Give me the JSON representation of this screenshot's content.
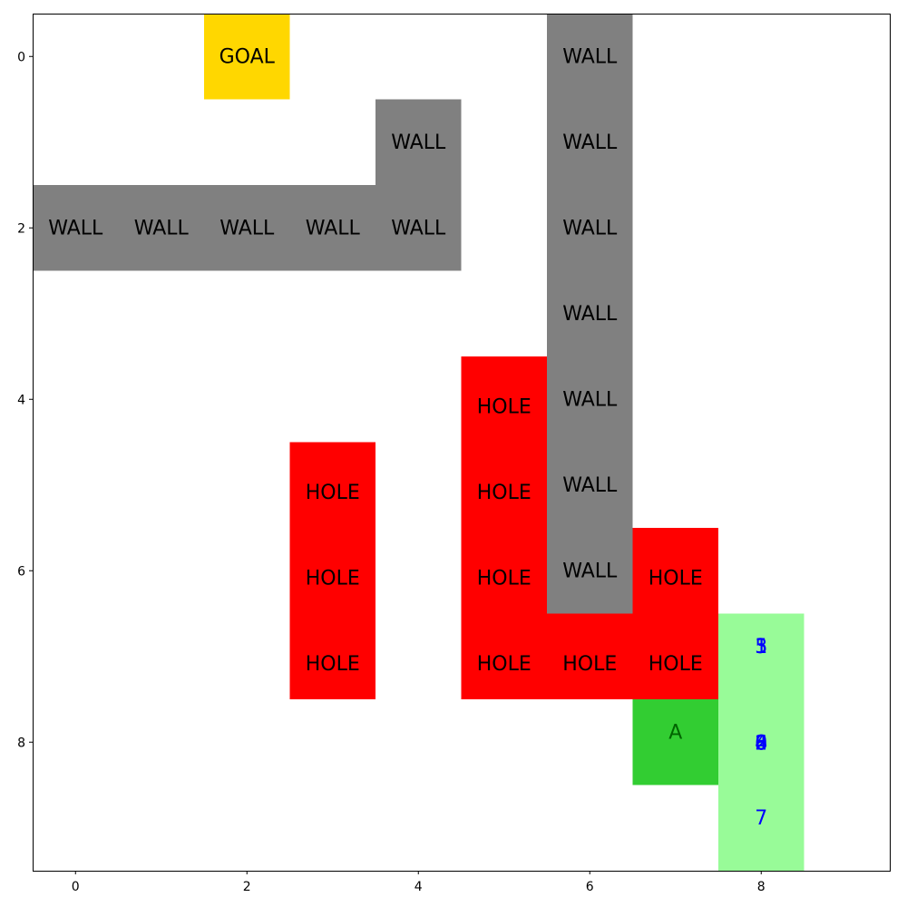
{
  "grid": {
    "rows": 10,
    "cols": 10,
    "x_ticks": [
      "0",
      "2",
      "4",
      "6",
      "8"
    ],
    "y_ticks": [
      "0",
      "2",
      "4",
      "6",
      "8"
    ],
    "x_tick_values": [
      0,
      2,
      4,
      6,
      8
    ],
    "y_tick_values": [
      0,
      2,
      4,
      6,
      8
    ]
  },
  "colors": {
    "wall": "#808080",
    "hole": "#ff0000",
    "goal": "#ffd700",
    "agent": "#32cd32",
    "visited": "#98fb98",
    "visit_text": "#0000ff",
    "agent_text": "#006400",
    "cell_text": "#000000"
  },
  "labels": {
    "wall": "WALL",
    "hole": "HOLE",
    "goal": "GOAL",
    "agent": "A"
  },
  "cells": [
    {
      "type": "goal",
      "row": 0,
      "col": 2
    },
    {
      "type": "wall",
      "row": 0,
      "col": 6
    },
    {
      "type": "wall",
      "row": 1,
      "col": 4
    },
    {
      "type": "wall",
      "row": 1,
      "col": 6
    },
    {
      "type": "wall",
      "row": 2,
      "col": 0
    },
    {
      "type": "wall",
      "row": 2,
      "col": 1
    },
    {
      "type": "wall",
      "row": 2,
      "col": 2
    },
    {
      "type": "wall",
      "row": 2,
      "col": 3
    },
    {
      "type": "wall",
      "row": 2,
      "col": 4
    },
    {
      "type": "wall",
      "row": 2,
      "col": 6
    },
    {
      "type": "wall",
      "row": 3,
      "col": 6
    },
    {
      "type": "hole",
      "row": 4,
      "col": 5
    },
    {
      "type": "wall",
      "row": 4,
      "col": 6
    },
    {
      "type": "hole",
      "row": 5,
      "col": 3
    },
    {
      "type": "hole",
      "row": 5,
      "col": 5
    },
    {
      "type": "wall",
      "row": 5,
      "col": 6
    },
    {
      "type": "hole",
      "row": 6,
      "col": 3
    },
    {
      "type": "hole",
      "row": 6,
      "col": 5
    },
    {
      "type": "wall",
      "row": 6,
      "col": 6
    },
    {
      "type": "hole",
      "row": 6,
      "col": 7
    },
    {
      "type": "hole",
      "row": 7,
      "col": 3
    },
    {
      "type": "hole",
      "row": 7,
      "col": 5
    },
    {
      "type": "hole",
      "row": 7,
      "col": 6
    },
    {
      "type": "hole",
      "row": 7,
      "col": 7
    },
    {
      "type": "visited",
      "row": 7,
      "col": 8
    },
    {
      "type": "agent",
      "row": 8,
      "col": 7
    },
    {
      "type": "visited",
      "row": 8,
      "col": 8
    },
    {
      "type": "visited",
      "row": 9,
      "col": 8
    }
  ],
  "visit_numbers": [
    {
      "row": 7,
      "col": 8,
      "labels": [
        "1",
        "3",
        "5"
      ]
    },
    {
      "row": 8,
      "col": 8,
      "labels": [
        "0",
        "2",
        "4",
        "6",
        "8"
      ]
    },
    {
      "row": 9,
      "col": 8,
      "labels": [
        "7"
      ]
    }
  ]
}
